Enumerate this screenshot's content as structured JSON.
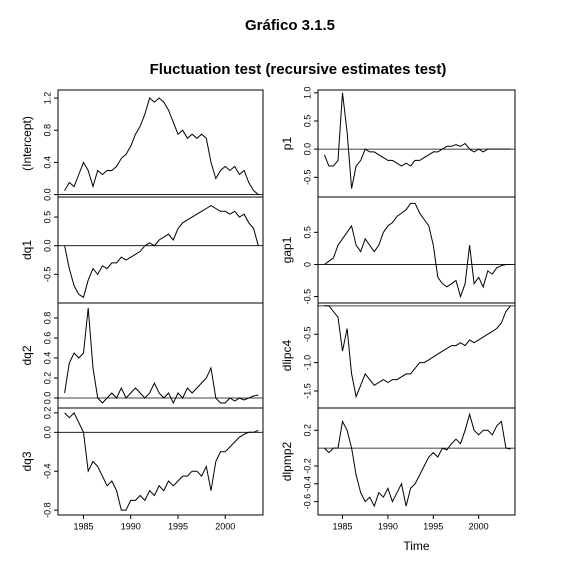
{
  "title": "Gráfico 3.1.5",
  "subtitle": "Fluctuation test (recursive estimates test)",
  "chart_data": [
    {
      "type": "line",
      "ylabel": "(Intercept)",
      "x": [
        1983,
        1983.5,
        1984,
        1984.5,
        1985,
        1985.5,
        1986,
        1986.5,
        1987,
        1987.5,
        1988,
        1988.5,
        1989,
        1989.5,
        1990,
        1990.5,
        1991,
        1991.5,
        1992,
        1992.5,
        1993,
        1993.5,
        1994,
        1994.5,
        1995,
        1995.5,
        1996,
        1996.5,
        1997,
        1997.5,
        1998,
        1998.5,
        1999,
        1999.5,
        2000,
        2000.5,
        2001,
        2001.5,
        2002,
        2002.5,
        2003,
        2003.5
      ],
      "values": [
        0.05,
        0.15,
        0.1,
        0.25,
        0.4,
        0.3,
        0.1,
        0.3,
        0.25,
        0.3,
        0.3,
        0.35,
        0.45,
        0.5,
        0.6,
        0.75,
        0.85,
        1.0,
        1.2,
        1.15,
        1.2,
        1.15,
        1.05,
        0.9,
        0.75,
        0.8,
        0.7,
        0.75,
        0.7,
        0.75,
        0.7,
        0.4,
        0.2,
        0.3,
        0.35,
        0.3,
        0.35,
        0.25,
        0.3,
        0.15,
        0.05,
        0.0
      ],
      "xlim": [
        1982.3,
        2004
      ],
      "ylim": [
        -0.03,
        1.3
      ],
      "yticks": [
        {
          "value": 0,
          "label": "0.0"
        },
        0.4,
        0.8,
        1.2
      ],
      "hline": 0
    },
    {
      "type": "line",
      "ylabel": "dq1",
      "x": [
        1983,
        1983.5,
        1984,
        1984.5,
        1985,
        1985.5,
        1986,
        1986.5,
        1987,
        1987.5,
        1988,
        1988.5,
        1989,
        1989.5,
        1990,
        1990.5,
        1991,
        1991.5,
        1992,
        1992.5,
        1993,
        1993.5,
        1994,
        1994.5,
        1995,
        1995.5,
        1996,
        1996.5,
        1997,
        1997.5,
        1998,
        1998.5,
        1999,
        1999.5,
        2000,
        2000.5,
        2001,
        2001.5,
        2002,
        2002.5,
        2003,
        2003.5
      ],
      "values": [
        0.0,
        -0.4,
        -0.7,
        -0.85,
        -0.9,
        -0.6,
        -0.4,
        -0.5,
        -0.35,
        -0.4,
        -0.3,
        -0.3,
        -0.2,
        -0.25,
        -0.2,
        -0.15,
        -0.1,
        0.0,
        0.05,
        0.0,
        0.1,
        0.15,
        0.2,
        0.1,
        0.3,
        0.4,
        0.45,
        0.5,
        0.55,
        0.6,
        0.65,
        0.7,
        0.65,
        0.6,
        0.6,
        0.55,
        0.6,
        0.5,
        0.55,
        0.4,
        0.3,
        0.0
      ],
      "xlim": [
        1982.3,
        2004
      ],
      "ylim": [
        -1.0,
        0.85
      ],
      "yticks": [
        -0.5,
        {
          "value": 0,
          "label": "0.0"
        },
        0.5
      ],
      "hline": 0
    },
    {
      "type": "line",
      "ylabel": "dq2",
      "x": [
        1983,
        1983.5,
        1984,
        1984.5,
        1985,
        1985.5,
        1986,
        1986.5,
        1987,
        1987.5,
        1988,
        1988.5,
        1989,
        1989.5,
        1990,
        1990.5,
        1991,
        1991.5,
        1992,
        1992.5,
        1993,
        1993.5,
        1994,
        1994.5,
        1995,
        1995.5,
        1996,
        1996.5,
        1997,
        1997.5,
        1998,
        1998.5,
        1999,
        1999.5,
        2000,
        2000.5,
        2001,
        2001.5,
        2002,
        2002.5,
        2003,
        2003.5
      ],
      "values": [
        0.05,
        0.35,
        0.45,
        0.4,
        0.45,
        0.9,
        0.3,
        0.0,
        -0.05,
        0.0,
        0.05,
        0.0,
        0.1,
        0.0,
        0.05,
        0.1,
        0.05,
        0.0,
        0.05,
        0.15,
        0.05,
        0.0,
        0.05,
        -0.05,
        0.05,
        0.0,
        0.1,
        0.05,
        0.1,
        0.15,
        0.2,
        0.3,
        0.0,
        -0.05,
        -0.05,
        0.0,
        -0.03,
        0.0,
        -0.02,
        0.0,
        0.02,
        0.03
      ],
      "xlim": [
        1982.3,
        2004
      ],
      "ylim": [
        -0.1,
        0.95
      ],
      "yticks": [
        {
          "value": 0,
          "label": "0.0"
        },
        0.2,
        0.4,
        0.6,
        0.8
      ],
      "hline": 0
    },
    {
      "type": "line",
      "ylabel": "dq3",
      "x": [
        1983,
        1983.5,
        1984,
        1984.5,
        1985,
        1985.5,
        1986,
        1986.5,
        1987,
        1987.5,
        1988,
        1988.5,
        1989,
        1989.5,
        1990,
        1990.5,
        1991,
        1991.5,
        1992,
        1992.5,
        1993,
        1993.5,
        1994,
        1994.5,
        1995,
        1995.5,
        1996,
        1996.5,
        1997,
        1997.5,
        1998,
        1998.5,
        1999,
        1999.5,
        2000,
        2000.5,
        2001,
        2001.5,
        2002,
        2002.5,
        2003,
        2003.5
      ],
      "values": [
        0.2,
        0.15,
        0.2,
        0.1,
        0.0,
        -0.4,
        -0.3,
        -0.35,
        -0.45,
        -0.55,
        -0.5,
        -0.6,
        -0.8,
        -0.8,
        -0.7,
        -0.7,
        -0.65,
        -0.7,
        -0.6,
        -0.65,
        -0.55,
        -0.6,
        -0.5,
        -0.55,
        -0.5,
        -0.45,
        -0.45,
        -0.4,
        -0.4,
        -0.45,
        -0.35,
        -0.6,
        -0.3,
        -0.2,
        -0.2,
        -0.15,
        -0.1,
        -0.05,
        -0.02,
        0.0,
        0.0,
        0.02
      ],
      "xlim": [
        1982.3,
        2004
      ],
      "ylim": [
        -0.85,
        0.25
      ],
      "yticks": [
        -0.8,
        -0.4,
        {
          "value": 0,
          "label": "0.0"
        },
        0.2
      ],
      "hline": 0,
      "xticks": [
        1985,
        1990,
        1995,
        2000
      ]
    },
    {
      "type": "line",
      "ylabel": "p1",
      "x": [
        1983,
        1983.5,
        1984,
        1984.5,
        1985,
        1985.5,
        1986,
        1986.5,
        1987,
        1987.5,
        1988,
        1988.5,
        1989,
        1989.5,
        1990,
        1990.5,
        1991,
        1991.5,
        1992,
        1992.5,
        1993,
        1993.5,
        1994,
        1994.5,
        1995,
        1995.5,
        1996,
        1996.5,
        1997,
        1997.5,
        1998,
        1998.5,
        1999,
        1999.5,
        2000,
        2000.5,
        2001,
        2001.5,
        2002,
        2002.5,
        2003,
        2003.5
      ],
      "values": [
        -0.1,
        -0.3,
        -0.3,
        -0.2,
        1.0,
        0.3,
        -0.7,
        -0.3,
        -0.2,
        0.0,
        -0.05,
        -0.05,
        -0.1,
        -0.15,
        -0.2,
        -0.2,
        -0.25,
        -0.3,
        -0.25,
        -0.3,
        -0.2,
        -0.2,
        -0.15,
        -0.1,
        -0.05,
        -0.05,
        0.0,
        0.05,
        0.05,
        0.08,
        0.05,
        0.1,
        0.0,
        -0.05,
        0.0,
        -0.05,
        0.0,
        0.0,
        0.0,
        0.0,
        0.0,
        0.0
      ],
      "xlim": [
        1982.3,
        2004
      ],
      "ylim": [
        -0.85,
        1.05
      ],
      "yticks": [
        -0.5,
        {
          "value": 0,
          "label": "0.0"
        },
        0.5,
        {
          "value": 1,
          "label": "1.0"
        }
      ],
      "hline": 0
    },
    {
      "type": "line",
      "ylabel": "gap1",
      "x": [
        1983,
        1983.5,
        1984,
        1984.5,
        1985,
        1985.5,
        1986,
        1986.5,
        1987,
        1987.5,
        1988,
        1988.5,
        1989,
        1989.5,
        1990,
        1990.5,
        1991,
        1991.5,
        1992,
        1992.5,
        1993,
        1993.5,
        1994,
        1994.5,
        1995,
        1995.5,
        1996,
        1996.5,
        1997,
        1997.5,
        1998,
        1998.5,
        1999,
        1999.5,
        2000,
        2000.5,
        2001,
        2001.5,
        2002,
        2002.5,
        2003,
        2003.5
      ],
      "values": [
        0.0,
        0.05,
        0.1,
        0.3,
        0.4,
        0.5,
        0.6,
        0.3,
        0.2,
        0.4,
        0.3,
        0.2,
        0.3,
        0.5,
        0.6,
        0.65,
        0.75,
        0.8,
        0.85,
        0.95,
        0.95,
        0.8,
        0.7,
        0.6,
        0.3,
        -0.2,
        -0.3,
        -0.35,
        -0.3,
        -0.25,
        -0.5,
        -0.3,
        0.3,
        -0.3,
        -0.2,
        -0.35,
        -0.1,
        -0.15,
        -0.05,
        -0.02,
        0.0,
        0.0
      ],
      "xlim": [
        1982.3,
        2004
      ],
      "ylim": [
        -0.6,
        1.05
      ],
      "yticks": [
        -0.5,
        0,
        0.5
      ],
      "hline": 0
    },
    {
      "type": "line",
      "ylabel": "dlipc4",
      "x": [
        1983,
        1983.5,
        1984,
        1984.5,
        1985,
        1985.5,
        1986,
        1986.5,
        1987,
        1987.5,
        1988,
        1988.5,
        1989,
        1989.5,
        1990,
        1990.5,
        1991,
        1991.5,
        1992,
        1992.5,
        1993,
        1993.5,
        1994,
        1994.5,
        1995,
        1995.5,
        1996,
        1996.5,
        1997,
        1997.5,
        1998,
        1998.5,
        1999,
        1999.5,
        2000,
        2000.5,
        2001,
        2001.5,
        2002,
        2002.5,
        2003,
        2003.5
      ],
      "values": [
        0.0,
        0.0,
        -0.1,
        -0.2,
        -0.8,
        -0.4,
        -1.2,
        -1.6,
        -1.4,
        -1.2,
        -1.3,
        -1.4,
        -1.35,
        -1.3,
        -1.35,
        -1.3,
        -1.3,
        -1.25,
        -1.2,
        -1.2,
        -1.1,
        -1.0,
        -1.0,
        -0.95,
        -0.9,
        -0.85,
        -0.8,
        -0.75,
        -0.7,
        -0.7,
        -0.65,
        -0.7,
        -0.6,
        -0.65,
        -0.6,
        -0.55,
        -0.5,
        -0.45,
        -0.4,
        -0.3,
        -0.1,
        0.0
      ],
      "xlim": [
        1982.3,
        2004
      ],
      "ylim": [
        -1.8,
        0.05
      ],
      "yticks": [
        -1.5,
        {
          "value": -1,
          "label": "-1.0"
        },
        -0.5
      ],
      "hline": 0
    },
    {
      "type": "line",
      "ylabel": "dlpmp2",
      "xlabel": "Time",
      "x": [
        1983,
        1983.5,
        1984,
        1984.5,
        1985,
        1985.5,
        1986,
        1986.5,
        1987,
        1987.5,
        1988,
        1988.5,
        1989,
        1989.5,
        1990,
        1990.5,
        1991,
        1991.5,
        1992,
        1992.5,
        1993,
        1993.5,
        1994,
        1994.5,
        1995,
        1995.5,
        1996,
        1996.5,
        1997,
        1997.5,
        1998,
        1998.5,
        1999,
        1999.5,
        2000,
        2000.5,
        2001,
        2001.5,
        2002,
        2002.5,
        2003,
        2003.5
      ],
      "values": [
        0.0,
        -0.05,
        0.0,
        0.0,
        0.3,
        0.2,
        0.0,
        -0.3,
        -0.5,
        -0.6,
        -0.55,
        -0.65,
        -0.5,
        -0.55,
        -0.45,
        -0.6,
        -0.5,
        -0.4,
        -0.65,
        -0.45,
        -0.4,
        -0.3,
        -0.2,
        -0.1,
        -0.05,
        -0.1,
        0.0,
        -0.02,
        0.05,
        0.1,
        0.05,
        0.2,
        0.38,
        0.2,
        0.15,
        0.2,
        0.2,
        0.15,
        0.25,
        0.3,
        0.0,
        -0.01
      ],
      "xlim": [
        1982.3,
        2004
      ],
      "ylim": [
        -0.75,
        0.45
      ],
      "yticks": [
        -0.6,
        -0.4,
        -0.2,
        0.2
      ],
      "hline": 0,
      "xticks": [
        1985,
        1990,
        1995,
        2000
      ]
    }
  ]
}
